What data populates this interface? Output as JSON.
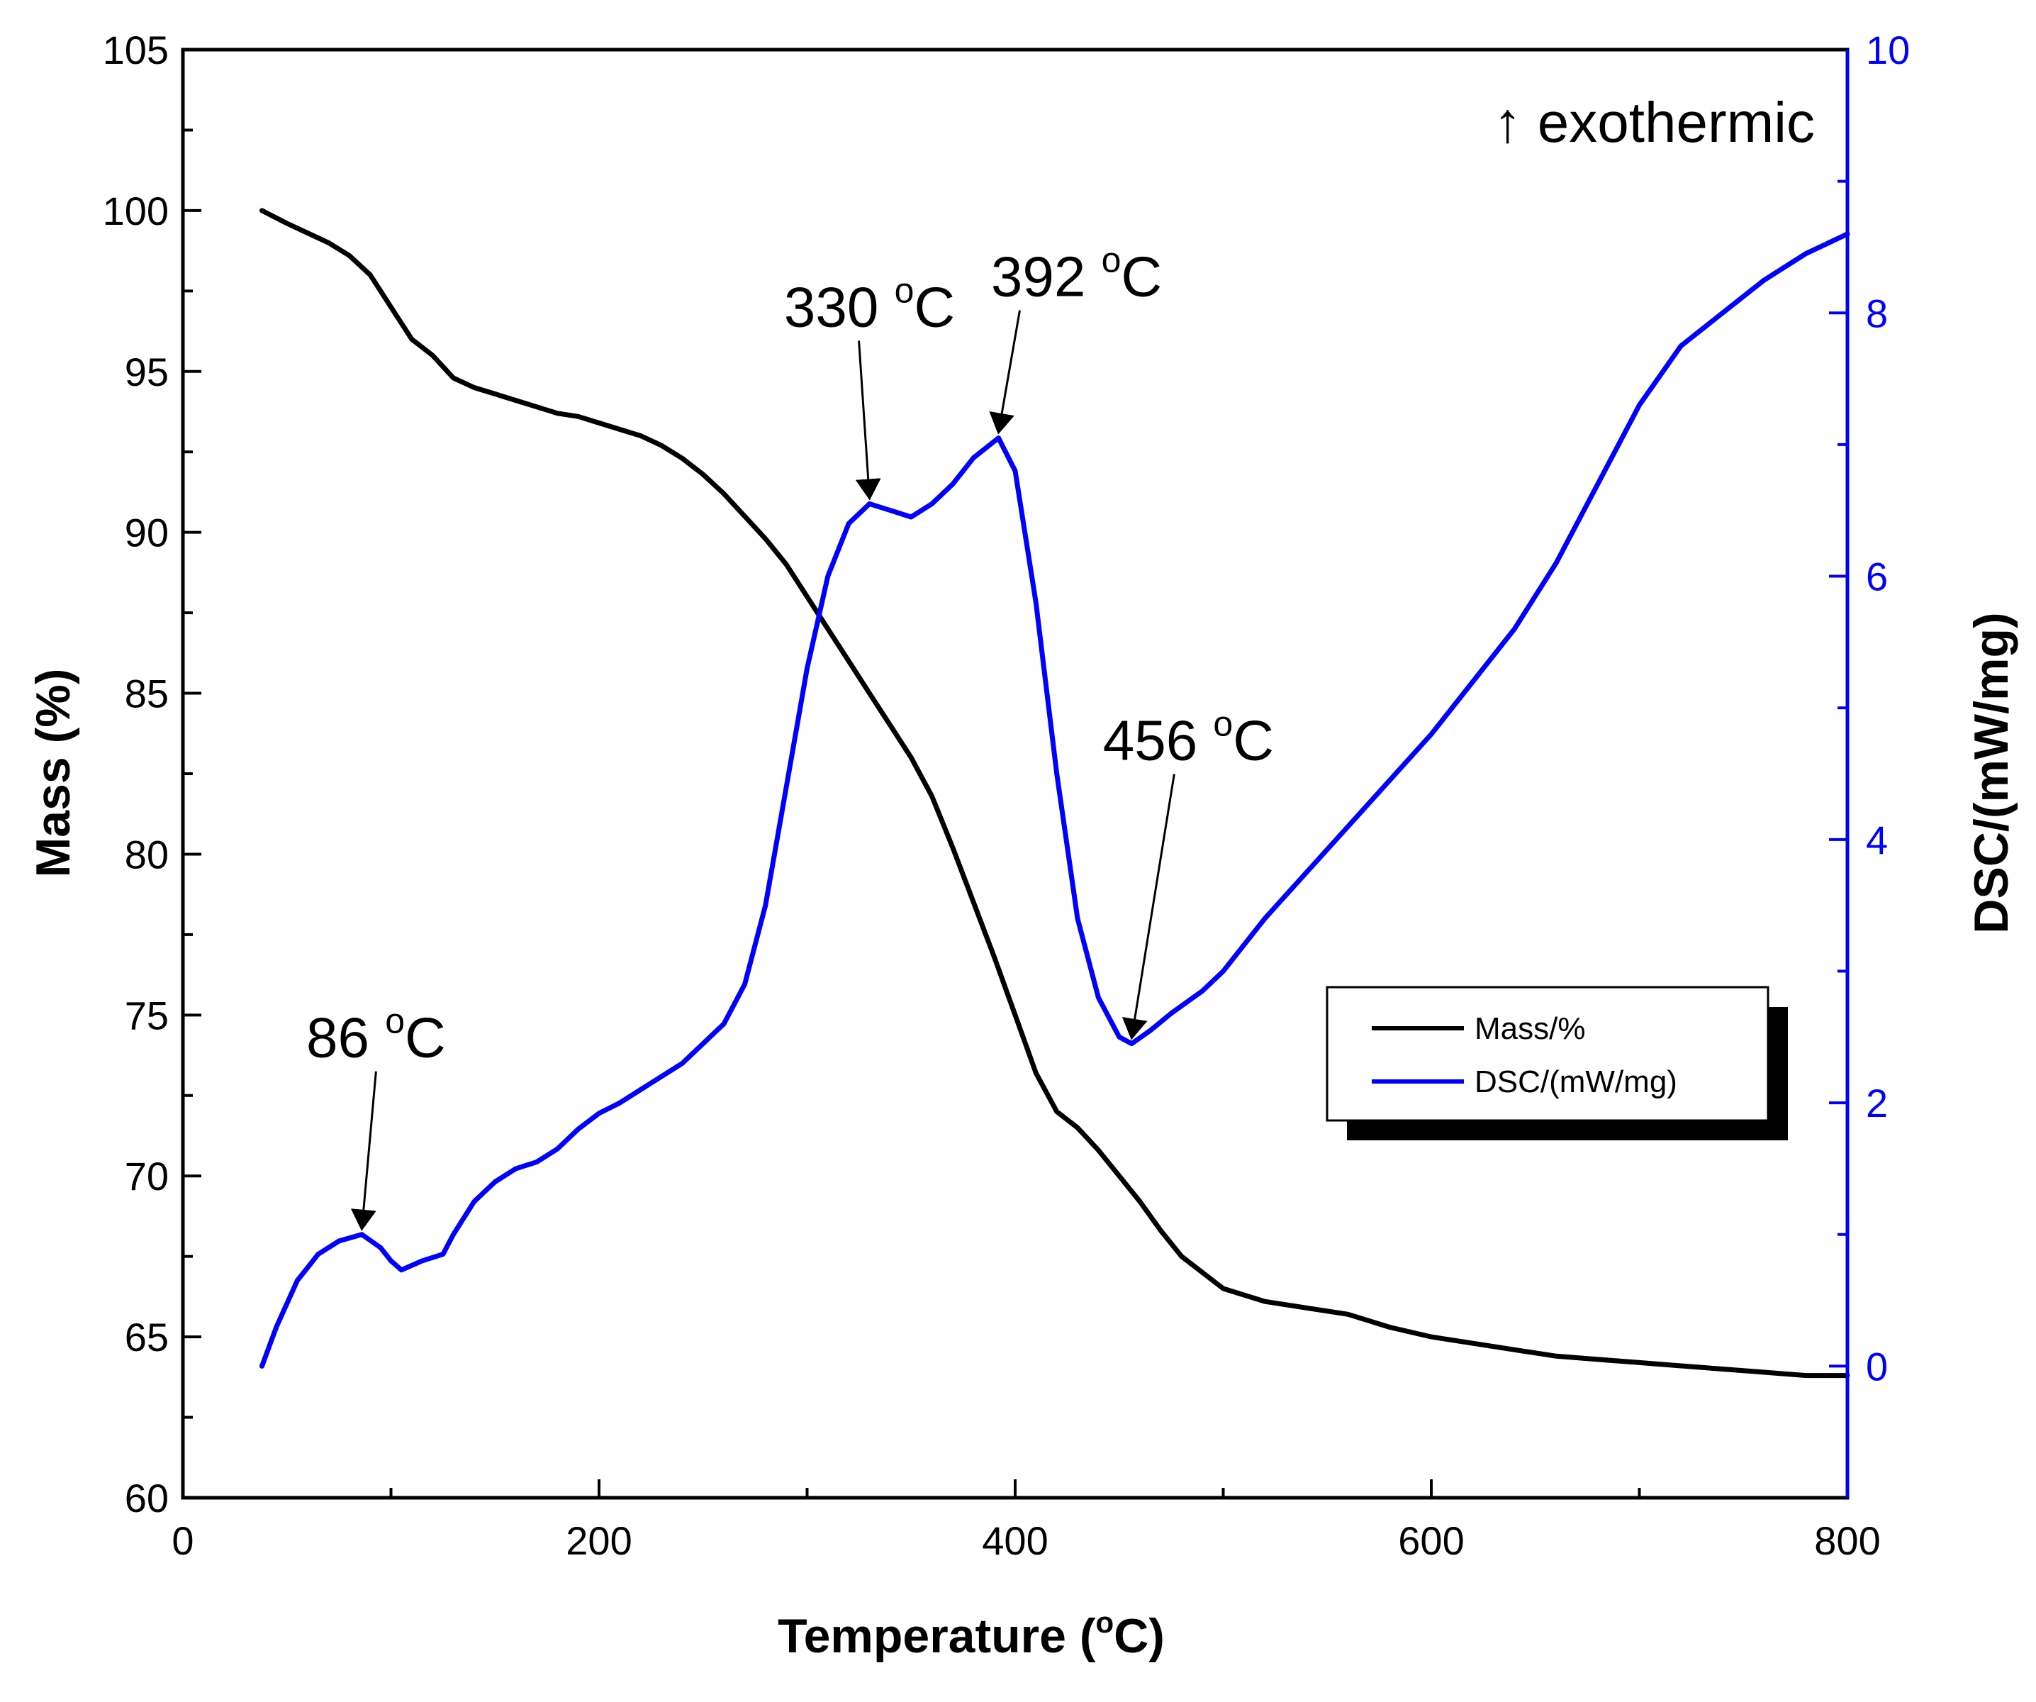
{
  "chart_data": {
    "type": "line",
    "xlabel": "Temperature (",
    "xlabel_unit": "C)",
    "xlabel_sup": "o",
    "ylabel_left": "Mass (%)",
    "ylabel_right": "DSC/(mW/mg)",
    "xlim": [
      0,
      800
    ],
    "ylim_left": [
      60,
      105
    ],
    "ylim_right": [
      -1,
      10
    ],
    "x_ticks": [
      "0",
      "200",
      "400",
      "600",
      "800"
    ],
    "y_left_ticks": [
      "60",
      "65",
      "70",
      "75",
      "80",
      "85",
      "90",
      "95",
      "100",
      "105"
    ],
    "y_right_ticks": [
      "0",
      "2",
      "4",
      "6",
      "8",
      "10"
    ],
    "colors": {
      "mass": "#000000",
      "dsc": "#0000ff",
      "right_axis": "#0000ff"
    },
    "series": [
      {
        "name": "Mass/%",
        "axis": "left",
        "x": [
          38,
          50,
          60,
          70,
          80,
          90,
          100,
          110,
          120,
          130,
          140,
          150,
          160,
          170,
          180,
          190,
          200,
          210,
          220,
          230,
          240,
          250,
          260,
          270,
          280,
          290,
          300,
          310,
          320,
          330,
          340,
          350,
          360,
          370,
          380,
          390,
          400,
          410,
          420,
          430,
          440,
          450,
          460,
          470,
          480,
          490,
          500,
          520,
          540,
          560,
          580,
          600,
          620,
          640,
          660,
          680,
          700,
          720,
          740,
          760,
          780,
          800
        ],
        "y": [
          100.0,
          99.6,
          99.3,
          99.0,
          98.6,
          98.0,
          97.0,
          96.0,
          95.5,
          94.8,
          94.5,
          94.3,
          94.1,
          93.9,
          93.7,
          93.6,
          93.4,
          93.2,
          93.0,
          92.7,
          92.3,
          91.8,
          91.2,
          90.5,
          89.8,
          89.0,
          88.0,
          87.0,
          86.0,
          85.0,
          84.0,
          83.0,
          81.8,
          80.2,
          78.5,
          76.8,
          75.0,
          73.2,
          72.0,
          71.5,
          70.8,
          70.0,
          69.2,
          68.3,
          67.5,
          67.0,
          66.5,
          66.1,
          65.9,
          65.7,
          65.3,
          65.0,
          64.8,
          64.6,
          64.4,
          64.3,
          64.2,
          64.1,
          64.0,
          63.9,
          63.8,
          63.8
        ]
      },
      {
        "name": "DSC/(mW/mg)",
        "axis": "right",
        "x": [
          38,
          45,
          55,
          65,
          75,
          86,
          95,
          100,
          105,
          115,
          125,
          130,
          140,
          150,
          160,
          170,
          180,
          190,
          200,
          210,
          220,
          230,
          240,
          250,
          260,
          270,
          280,
          290,
          300,
          310,
          320,
          330,
          340,
          350,
          360,
          370,
          380,
          392,
          400,
          410,
          420,
          430,
          440,
          450,
          456,
          465,
          475,
          490,
          500,
          520,
          540,
          560,
          580,
          600,
          620,
          640,
          660,
          680,
          700,
          720,
          740,
          760,
          780,
          800
        ],
        "y": [
          0.0,
          0.3,
          0.65,
          0.85,
          0.95,
          1.0,
          0.9,
          0.8,
          0.73,
          0.8,
          0.85,
          1.0,
          1.25,
          1.4,
          1.5,
          1.55,
          1.65,
          1.8,
          1.92,
          2.0,
          2.1,
          2.2,
          2.3,
          2.45,
          2.6,
          2.9,
          3.5,
          4.4,
          5.3,
          6.0,
          6.4,
          6.55,
          6.5,
          6.45,
          6.55,
          6.7,
          6.9,
          7.05,
          6.8,
          5.8,
          4.5,
          3.4,
          2.8,
          2.5,
          2.45,
          2.55,
          2.68,
          2.85,
          3.0,
          3.4,
          3.75,
          4.1,
          4.45,
          4.8,
          5.2,
          5.6,
          6.1,
          6.7,
          7.3,
          7.75,
          8.0,
          8.25,
          8.45,
          8.6
        ]
      }
    ],
    "annotations": [
      {
        "label": "86 ",
        "sup": "o",
        "unit": "C",
        "x": 86,
        "axis": "right",
        "value": 1.0
      },
      {
        "label": "330 ",
        "sup": "o",
        "unit": "C",
        "x": 330,
        "axis": "right",
        "value": 6.55
      },
      {
        "label": "392 ",
        "sup": "o",
        "unit": "C",
        "x": 392,
        "axis": "right",
        "value": 7.05
      },
      {
        "label": "456 ",
        "sup": "o",
        "unit": "C",
        "x": 456,
        "axis": "right",
        "value": 2.45
      }
    ],
    "note": "↑ exothermic",
    "legend": {
      "position": "right",
      "entries": [
        "Mass/%",
        "DSC/(mW/mg)"
      ]
    }
  }
}
